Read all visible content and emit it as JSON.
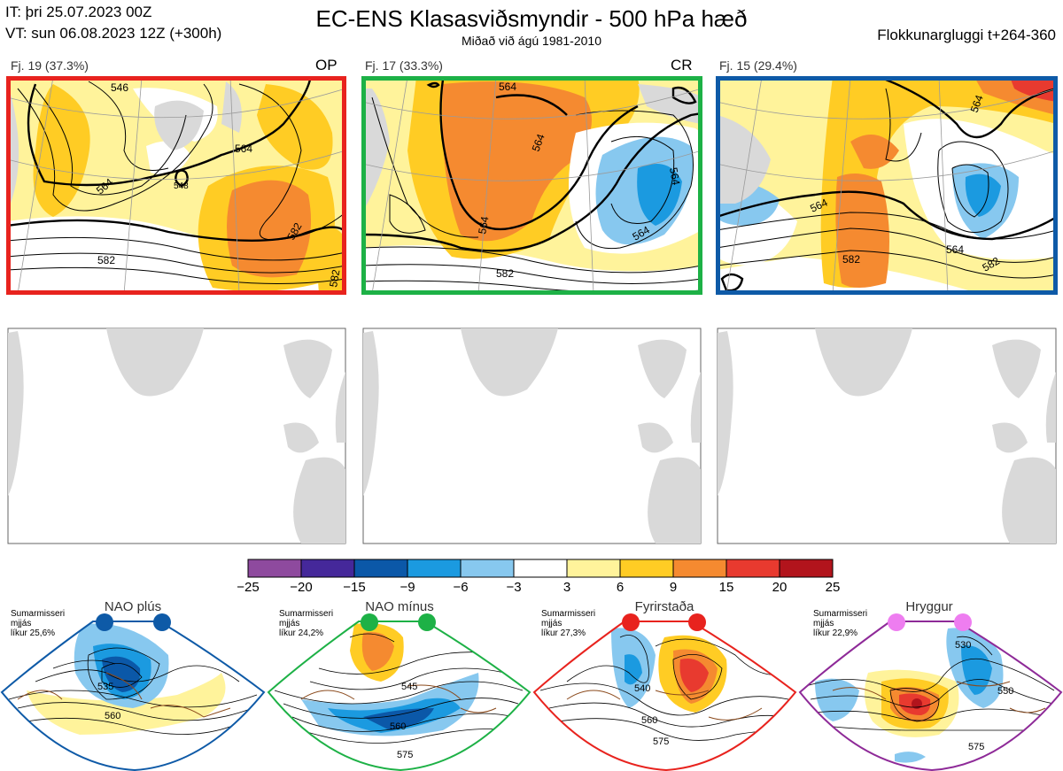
{
  "header": {
    "it_line": "IT: þri 25.07.2023 00Z",
    "vt_line": "VT: sun 06.08.2023 12Z  (+300h)",
    "title": "EC-ENS Klasasviðsmyndir - 500 hPa hæð",
    "subtitle": "Miðað við ágú 1981-2010",
    "window_label": "Flokkunargluggi t+264-360"
  },
  "panels": [
    {
      "label": "Fj. 19 (37.3%)",
      "tag": "OP",
      "border_color": "#e8231e",
      "contour_labels": [
        "546",
        "564",
        "564",
        "548",
        "582",
        "582",
        "582"
      ]
    },
    {
      "label": "Fj. 17 (33.3%)",
      "tag": "CR",
      "border_color": "#1db146",
      "contour_labels": [
        "564",
        "564",
        "564",
        "564",
        "564",
        "582"
      ]
    },
    {
      "label": "Fj. 15 (29.4%)",
      "tag": "",
      "border_color": "#0e5aa7",
      "contour_labels": [
        "564",
        "564",
        "564",
        "582",
        "582"
      ]
    }
  ],
  "colorbar": {
    "ticks": [
      "−25",
      "−20",
      "−15",
      "−9",
      "−6",
      "−3",
      "3",
      "6",
      "9",
      "15",
      "20",
      "25"
    ],
    "colors": [
      "#8e4a9e",
      "#45289a",
      "#0b58a8",
      "#1b9ae0",
      "#87c8ef",
      "#ffffff",
      "#fff39b",
      "#ffcc24",
      "#f58a30",
      "#e83a2f",
      "#b2141c"
    ]
  },
  "regimes": [
    {
      "title": "NAO plús",
      "lines": [
        "Sumarmisseri",
        "mjjás",
        "líkur 25,6%"
      ],
      "frame_color": "#0e5aa7",
      "dot_color": "#0e5aa7",
      "contour_labels": [
        "535",
        "560"
      ]
    },
    {
      "title": "NAO mínus",
      "lines": [
        "Sumarmisseri",
        "mjjás",
        "líkur 24,2%"
      ],
      "frame_color": "#1db146",
      "dot_color": "#1db146",
      "contour_labels": [
        "545",
        "560",
        "575"
      ]
    },
    {
      "title": "Fyrirstaða",
      "lines": [
        "Sumarmisseri",
        "mjjás",
        "líkur 27,3%"
      ],
      "frame_color": "#e8231e",
      "dot_color": "#e8231e",
      "contour_labels": [
        "540",
        "560",
        "575"
      ]
    },
    {
      "title": "Hryggur",
      "lines": [
        "Sumarmisseri",
        "mjjás",
        "líkur 22,9%"
      ],
      "frame_color": "#8e2a98",
      "dot_color": "#ee7df0",
      "contour_labels": [
        "530",
        "550",
        "575"
      ]
    }
  ]
}
